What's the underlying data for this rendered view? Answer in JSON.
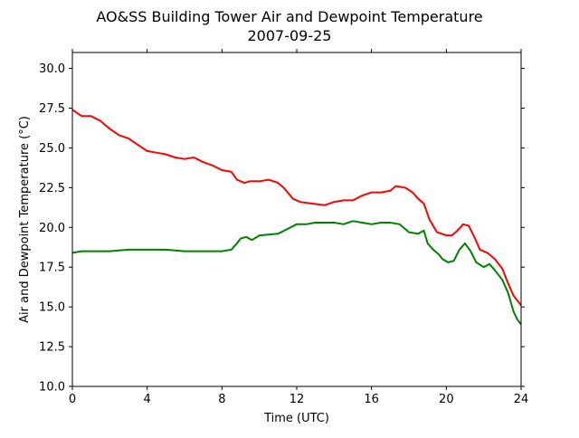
{
  "chart_data": {
    "type": "line",
    "title": "AO&SS Building Tower Air and Dewpoint Temperature",
    "subtitle": "2007-09-25",
    "xlabel": "Time (UTC)",
    "ylabel": "Air and Dewpoint Temperature (°C)",
    "xlim": [
      0,
      24
    ],
    "ylim": [
      10.0,
      31.0
    ],
    "xticks": [
      "0",
      "4",
      "8",
      "12",
      "16",
      "20",
      "24"
    ],
    "yticks": [
      "10.0",
      "12.5",
      "15.0",
      "17.5",
      "20.0",
      "22.5",
      "25.0",
      "27.5",
      "30.0"
    ],
    "grid": false,
    "series": [
      {
        "color": "#ff0000",
        "x": [
          0,
          0.5,
          1,
          1.5,
          2,
          2.5,
          3,
          3.5,
          4,
          4.5,
          5,
          5.5,
          6,
          6.5,
          7,
          7.5,
          8,
          8.5,
          8.8,
          9.2,
          9.5,
          10,
          10.5,
          11,
          11.3,
          11.8,
          12.2,
          12.8,
          13.5,
          14,
          14.5,
          15,
          15.5,
          16,
          16.5,
          17,
          17.3,
          17.8,
          18.2,
          18.5,
          18.8,
          19.1,
          19.5,
          20,
          20.3,
          20.6,
          20.9,
          21.2,
          21.5,
          21.8,
          22.2,
          22.6,
          23,
          23.3,
          23.6,
          24
        ],
        "y": [
          27.4,
          27.0,
          27.0,
          26.7,
          26.2,
          25.8,
          25.6,
          25.2,
          24.8,
          24.7,
          24.6,
          24.4,
          24.3,
          24.4,
          24.1,
          23.9,
          23.6,
          23.5,
          23.0,
          22.8,
          22.9,
          22.9,
          23.0,
          22.8,
          22.5,
          21.8,
          21.6,
          21.5,
          21.4,
          21.6,
          21.7,
          21.7,
          22.0,
          22.2,
          22.2,
          22.3,
          22.6,
          22.5,
          22.2,
          21.8,
          21.5,
          20.5,
          19.7,
          19.5,
          19.5,
          19.8,
          20.2,
          20.1,
          19.4,
          18.6,
          18.4,
          18.0,
          17.4,
          16.5,
          15.7,
          15.1
        ]
      },
      {
        "color": "#008000",
        "x": [
          0,
          0.5,
          1,
          2,
          3,
          4,
          5,
          6,
          7,
          8,
          8.5,
          8.8,
          9.0,
          9.3,
          9.6,
          10,
          11,
          11.5,
          12,
          12.5,
          13,
          13.5,
          14,
          14.5,
          15,
          15.5,
          16,
          16.5,
          17,
          17.5,
          18,
          18.5,
          18.8,
          19.0,
          19.3,
          19.6,
          19.8,
          20.1,
          20.4,
          20.7,
          21.0,
          21.3,
          21.6,
          22.0,
          22.3,
          22.6,
          23.0,
          23.3,
          23.6,
          23.8,
          24
        ],
        "y": [
          18.4,
          18.5,
          18.5,
          18.5,
          18.6,
          18.6,
          18.6,
          18.5,
          18.5,
          18.5,
          18.6,
          19.0,
          19.3,
          19.4,
          19.2,
          19.5,
          19.6,
          19.9,
          20.2,
          20.2,
          20.3,
          20.3,
          20.3,
          20.2,
          20.4,
          20.3,
          20.2,
          20.3,
          20.3,
          20.2,
          19.7,
          19.6,
          19.8,
          19.0,
          18.6,
          18.3,
          18.0,
          17.8,
          17.9,
          18.6,
          19.0,
          18.5,
          17.8,
          17.5,
          17.7,
          17.3,
          16.7,
          15.9,
          14.7,
          14.2,
          13.9
        ]
      }
    ]
  }
}
